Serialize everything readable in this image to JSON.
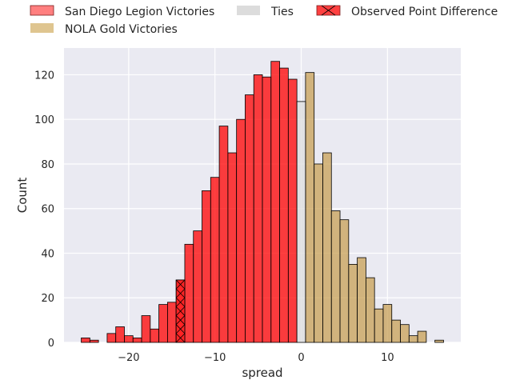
{
  "chart_data": {
    "type": "bar",
    "xlabel": "spread",
    "ylabel": "Count",
    "xlim": [
      -27.5,
      18.5
    ],
    "ylim": [
      0,
      132
    ],
    "xticks": [
      -20,
      -10,
      0,
      10
    ],
    "xtick_labels": [
      "−20",
      "−10",
      "0",
      "10"
    ],
    "yticks": [
      0,
      20,
      40,
      60,
      80,
      100,
      120
    ],
    "ytick_labels": [
      "0",
      "20",
      "40",
      "60",
      "80",
      "100",
      "120"
    ],
    "grid": true,
    "legend_position": "top",
    "bin_width": 1,
    "series": [
      {
        "name": "San Diego Legion Victories",
        "color": "#ff0000",
        "legend_color": "#ff7f7f",
        "bins": [
          {
            "x": -25,
            "count": 2
          },
          {
            "x": -24,
            "count": 1
          },
          {
            "x": -22,
            "count": 4
          },
          {
            "x": -21,
            "count": 7
          },
          {
            "x": -20,
            "count": 3
          },
          {
            "x": -19,
            "count": 2
          },
          {
            "x": -18,
            "count": 12
          },
          {
            "x": -17,
            "count": 6
          },
          {
            "x": -16,
            "count": 17
          },
          {
            "x": -15,
            "count": 18
          },
          {
            "x": -14,
            "count": 28
          },
          {
            "x": -13,
            "count": 44
          },
          {
            "x": -12,
            "count": 50
          },
          {
            "x": -11,
            "count": 68
          },
          {
            "x": -10,
            "count": 74
          },
          {
            "x": -9,
            "count": 97
          },
          {
            "x": -8,
            "count": 85
          },
          {
            "x": -7,
            "count": 100
          },
          {
            "x": -6,
            "count": 111
          },
          {
            "x": -5,
            "count": 120
          },
          {
            "x": -4,
            "count": 119
          },
          {
            "x": -3,
            "count": 126
          },
          {
            "x": -2,
            "count": 123
          },
          {
            "x": -1,
            "count": 118
          }
        ]
      },
      {
        "name": "NOLA Gold Victories",
        "color": "#c8a055",
        "legend_color": "#dfc590",
        "bins": [
          {
            "x": 1,
            "count": 121
          },
          {
            "x": 2,
            "count": 80
          },
          {
            "x": 3,
            "count": 85
          },
          {
            "x": 4,
            "count": 59
          },
          {
            "x": 5,
            "count": 55
          },
          {
            "x": 6,
            "count": 35
          },
          {
            "x": 7,
            "count": 38
          },
          {
            "x": 8,
            "count": 29
          },
          {
            "x": 9,
            "count": 15
          },
          {
            "x": 10,
            "count": 17
          },
          {
            "x": 11,
            "count": 10
          },
          {
            "x": 12,
            "count": 8
          },
          {
            "x": 13,
            "count": 3
          },
          {
            "x": 14,
            "count": 5
          },
          {
            "x": 16,
            "count": 1
          }
        ]
      },
      {
        "name": "Ties",
        "color": "#dcdcdc",
        "legend_color": "#dcdcdc",
        "bins": [
          {
            "x": 0,
            "count": 108
          }
        ]
      },
      {
        "name": "Observed Point Difference",
        "color": "#ff2020",
        "legend_color": "#ff4040",
        "hatch": "x",
        "bins": [
          {
            "x": -14,
            "count": 28
          }
        ]
      }
    ]
  }
}
